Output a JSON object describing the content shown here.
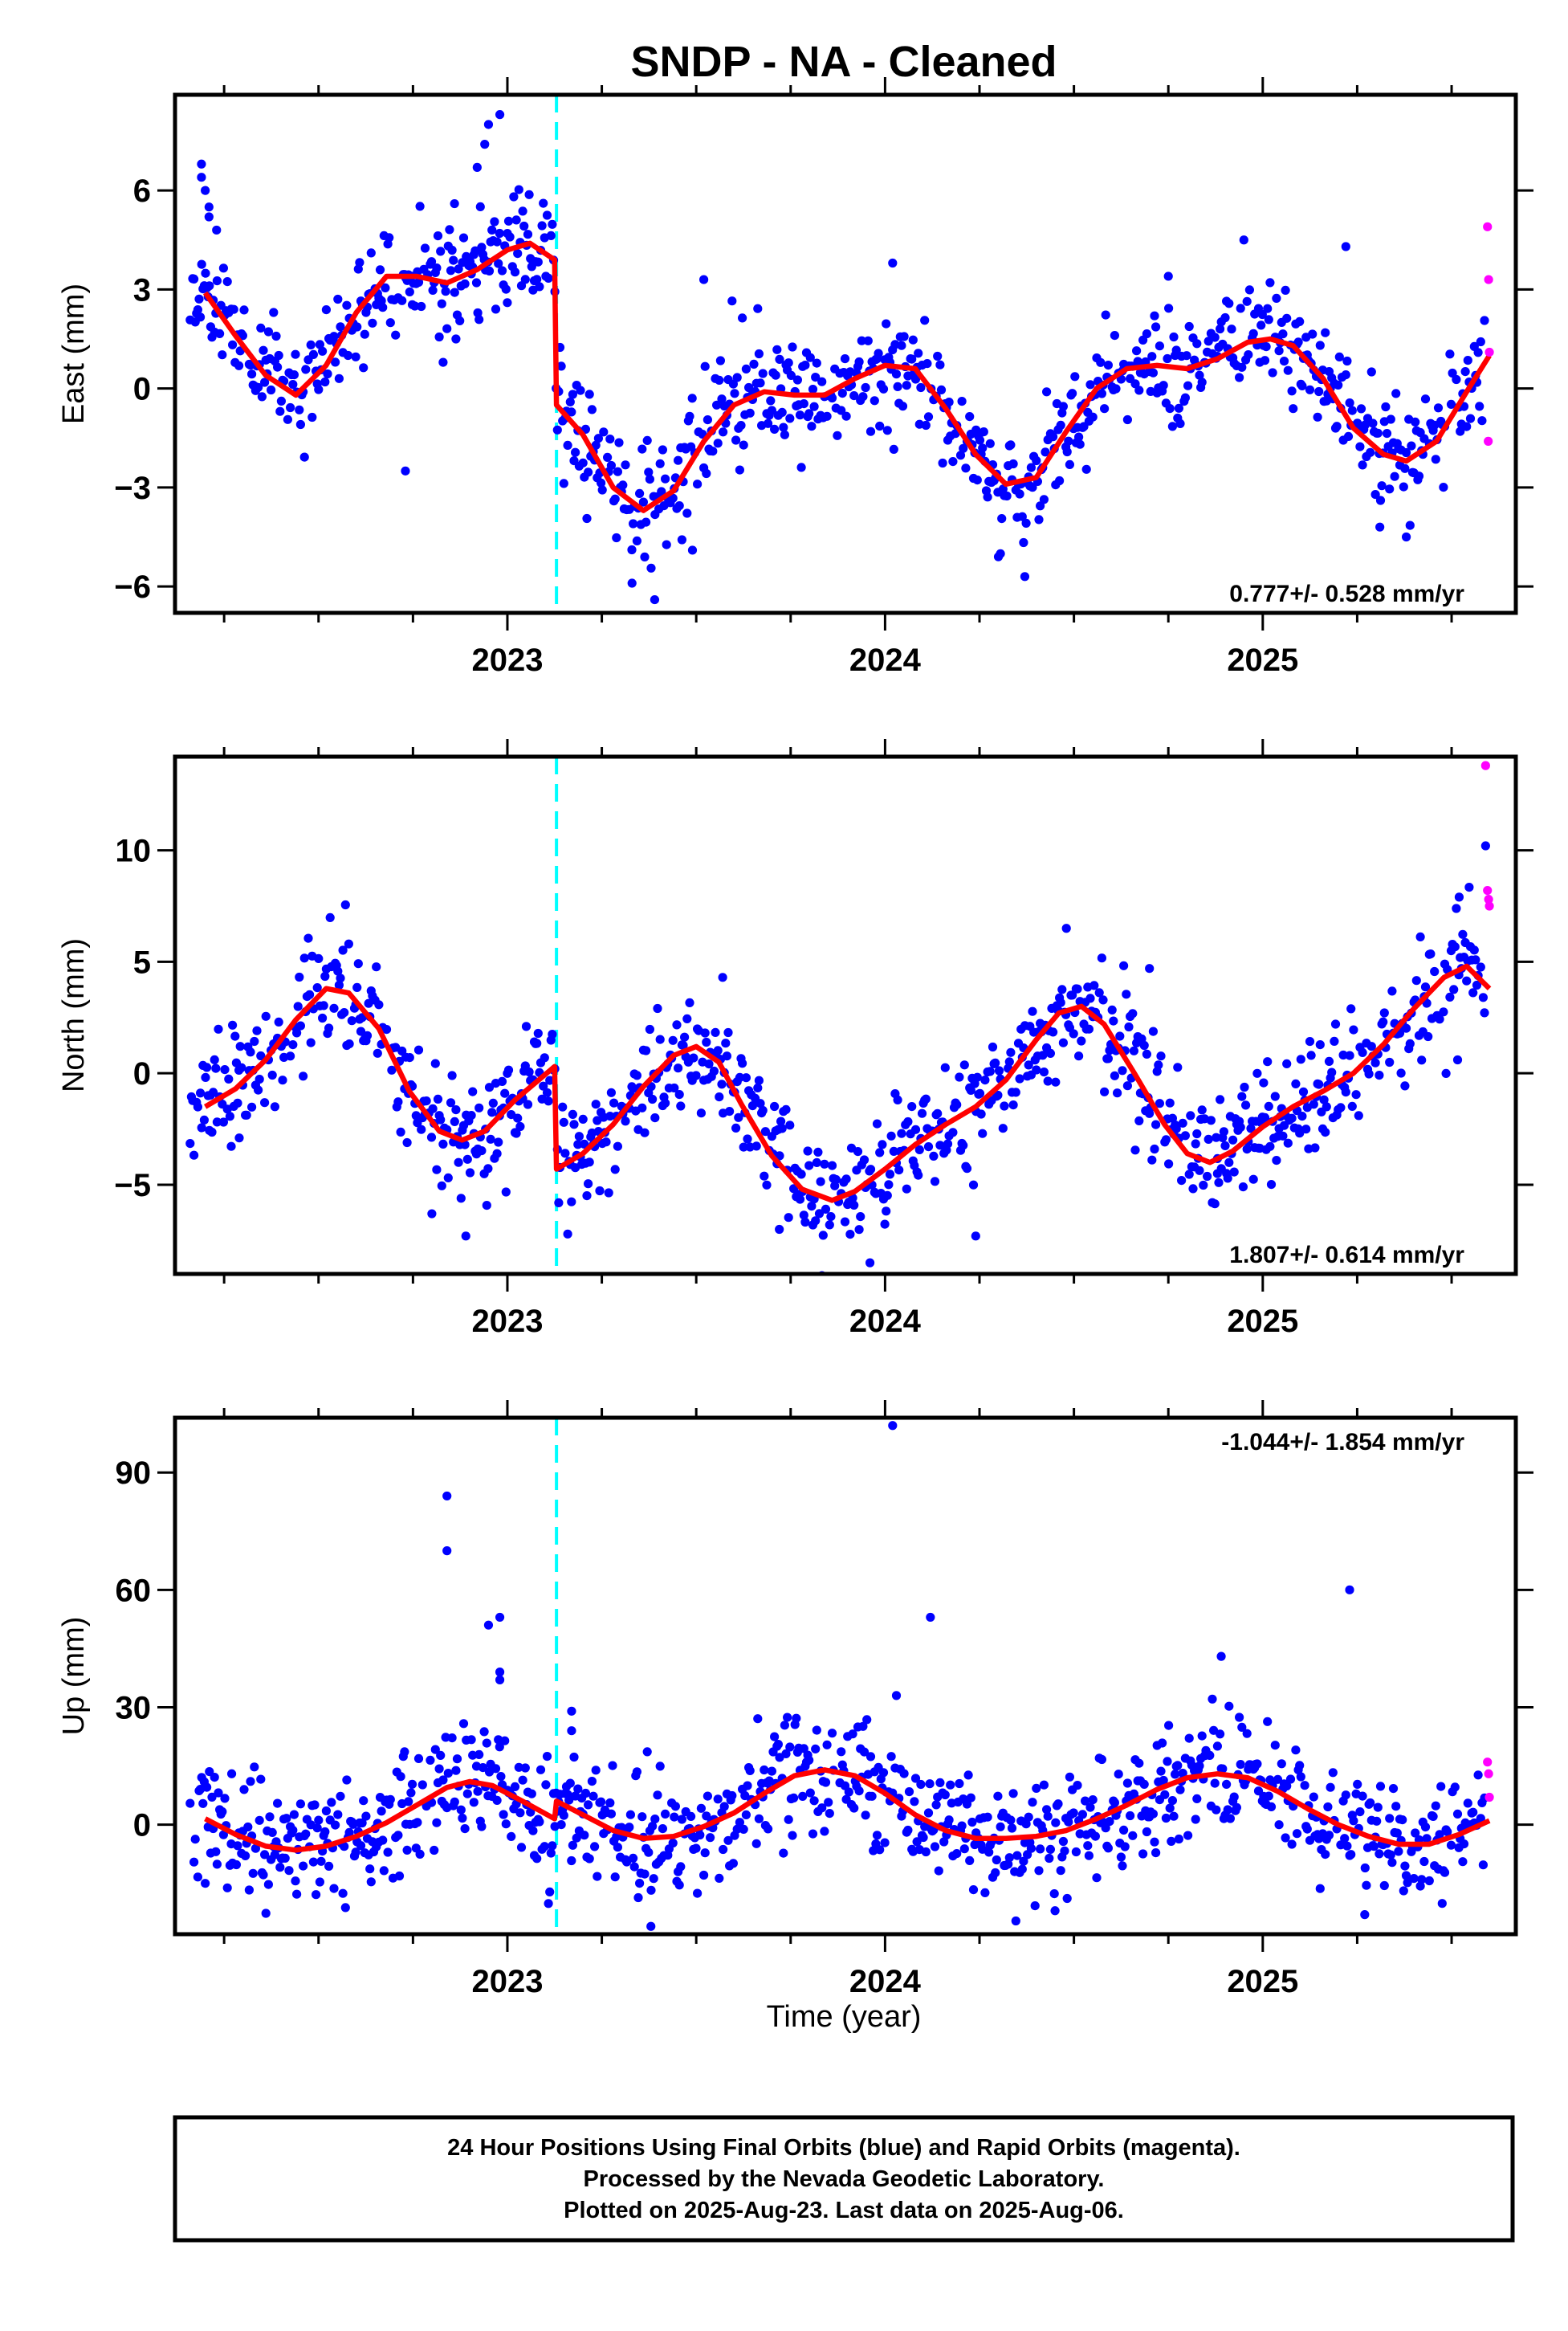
{
  "title": "SNDP  - NA - Cleaned",
  "xlabel": "Time (year)",
  "footer": {
    "line1": "24 Hour Positions Using Final Orbits (blue) and Rapid Orbits (magenta).",
    "line2": "Processed by the Nevada Geodetic Laboratory.",
    "line3": "Plotted on 2025-Aug-23. Last data on 2025-Aug-06."
  },
  "colors": {
    "final": "#0000ff",
    "rapid": "#ff00ff",
    "model": "#ff0000",
    "offset": "#00ffff"
  },
  "chart_data": [
    {
      "type": "scatter",
      "ylabel": "East (mm)",
      "rate": "0.777+/- 0.528 mm/yr",
      "rate_position": "bottom-right",
      "xlim": [
        2022.12,
        2025.67
      ],
      "ylim": [
        -6.8,
        8.9
      ],
      "xticks": [
        2023,
        2024,
        2025
      ],
      "yticks": [
        -6,
        -3,
        0,
        3,
        6
      ],
      "offset_epoch": 2023.13,
      "model": [
        [
          2022.2,
          2.9
        ],
        [
          2022.28,
          1.6
        ],
        [
          2022.36,
          0.4
        ],
        [
          2022.44,
          -0.2
        ],
        [
          2022.52,
          0.7
        ],
        [
          2022.6,
          2.3
        ],
        [
          2022.68,
          3.4
        ],
        [
          2022.76,
          3.4
        ],
        [
          2022.84,
          3.2
        ],
        [
          2022.92,
          3.6
        ],
        [
          2023.0,
          4.2
        ],
        [
          2023.06,
          4.4
        ],
        [
          2023.125,
          3.9
        ],
        [
          2023.13,
          -0.5
        ],
        [
          2023.2,
          -1.4
        ],
        [
          2023.28,
          -3.0
        ],
        [
          2023.36,
          -3.7
        ],
        [
          2023.44,
          -3.1
        ],
        [
          2023.52,
          -1.6
        ],
        [
          2023.6,
          -0.5
        ],
        [
          2023.68,
          -0.1
        ],
        [
          2023.76,
          -0.2
        ],
        [
          2023.84,
          -0.2
        ],
        [
          2023.92,
          0.3
        ],
        [
          2024.0,
          0.7
        ],
        [
          2024.08,
          0.6
        ],
        [
          2024.16,
          -0.6
        ],
        [
          2024.24,
          -2.0
        ],
        [
          2024.32,
          -2.9
        ],
        [
          2024.4,
          -2.7
        ],
        [
          2024.48,
          -1.3
        ],
        [
          2024.56,
          0.0
        ],
        [
          2024.64,
          0.6
        ],
        [
          2024.72,
          0.7
        ],
        [
          2024.8,
          0.6
        ],
        [
          2024.88,
          0.9
        ],
        [
          2024.96,
          1.4
        ],
        [
          2025.02,
          1.5
        ],
        [
          2025.08,
          1.3
        ],
        [
          2025.16,
          0.3
        ],
        [
          2025.24,
          -1.2
        ],
        [
          2025.32,
          -2.0
        ],
        [
          2025.38,
          -2.2
        ],
        [
          2025.46,
          -1.6
        ],
        [
          2025.54,
          -0.1
        ],
        [
          2025.6,
          1.0
        ]
      ],
      "final_seed": 11,
      "final_outliers": [
        [
          2022.19,
          6.8
        ],
        [
          2022.19,
          6.4
        ],
        [
          2022.2,
          6.0
        ],
        [
          2022.21,
          5.5
        ],
        [
          2022.21,
          5.2
        ],
        [
          2022.23,
          4.8
        ],
        [
          2022.98,
          8.3
        ],
        [
          2022.95,
          8.0
        ],
        [
          2022.94,
          7.4
        ],
        [
          2022.92,
          6.7
        ],
        [
          2022.73,
          -2.5
        ],
        [
          2022.86,
          5.6
        ],
        [
          2023.0,
          4.7
        ],
        [
          2023.39,
          -6.4
        ],
        [
          2023.33,
          -5.9
        ],
        [
          2023.49,
          -4.9
        ],
        [
          2023.52,
          3.3
        ],
        [
          2024.02,
          3.8
        ],
        [
          2024.3,
          -5.1
        ],
        [
          2024.37,
          -5.7
        ],
        [
          2024.75,
          3.4
        ],
        [
          2024.95,
          4.5
        ],
        [
          2025.22,
          4.3
        ],
        [
          2025.38,
          -4.5
        ],
        [
          2025.31,
          -4.2
        ]
      ],
      "rapid": [
        [
          2025.595,
          4.9
        ],
        [
          2025.598,
          3.3
        ],
        [
          2025.6,
          1.1
        ],
        [
          2025.597,
          -1.6
        ]
      ]
    },
    {
      "type": "scatter",
      "ylabel": "North (mm)",
      "rate": "1.807+/- 0.614 mm/yr",
      "rate_position": "bottom-right",
      "xlim": [
        2022.12,
        2025.67
      ],
      "ylim": [
        -9.0,
        14.2
      ],
      "xticks": [
        2023,
        2024,
        2025
      ],
      "yticks": [
        -5,
        0,
        5,
        10
      ],
      "offset_epoch": 2023.13,
      "model": [
        [
          2022.2,
          -1.5
        ],
        [
          2022.28,
          -0.7
        ],
        [
          2022.36,
          0.6
        ],
        [
          2022.44,
          2.4
        ],
        [
          2022.52,
          3.8
        ],
        [
          2022.58,
          3.6
        ],
        [
          2022.66,
          2.0
        ],
        [
          2022.74,
          -0.8
        ],
        [
          2022.82,
          -2.6
        ],
        [
          2022.88,
          -3.0
        ],
        [
          2022.94,
          -2.6
        ],
        [
          2023.02,
          -1.2
        ],
        [
          2023.125,
          0.3
        ],
        [
          2023.13,
          -4.3
        ],
        [
          2023.2,
          -3.6
        ],
        [
          2023.28,
          -2.3
        ],
        [
          2023.36,
          -0.6
        ],
        [
          2023.44,
          0.8
        ],
        [
          2023.5,
          1.2
        ],
        [
          2023.56,
          0.5
        ],
        [
          2023.62,
          -1.4
        ],
        [
          2023.7,
          -3.7
        ],
        [
          2023.78,
          -5.2
        ],
        [
          2023.86,
          -5.7
        ],
        [
          2023.92,
          -5.3
        ],
        [
          2024.0,
          -4.3
        ],
        [
          2024.08,
          -3.2
        ],
        [
          2024.16,
          -2.3
        ],
        [
          2024.24,
          -1.5
        ],
        [
          2024.32,
          -0.3
        ],
        [
          2024.4,
          1.5
        ],
        [
          2024.46,
          2.7
        ],
        [
          2024.52,
          3.0
        ],
        [
          2024.58,
          2.2
        ],
        [
          2024.66,
          0.0
        ],
        [
          2024.74,
          -2.3
        ],
        [
          2024.8,
          -3.6
        ],
        [
          2024.86,
          -4.0
        ],
        [
          2024.92,
          -3.5
        ],
        [
          2025.0,
          -2.4
        ],
        [
          2025.08,
          -1.5
        ],
        [
          2025.16,
          -0.8
        ],
        [
          2025.24,
          0.0
        ],
        [
          2025.32,
          1.3
        ],
        [
          2025.4,
          2.9
        ],
        [
          2025.48,
          4.3
        ],
        [
          2025.54,
          4.8
        ],
        [
          2025.6,
          3.8
        ]
      ],
      "final_seed": 23,
      "final_outliers": [
        [
          2022.29,
          -2.9
        ],
        [
          2022.58,
          5.8
        ],
        [
          2022.89,
          -7.3
        ],
        [
          2022.8,
          -6.3
        ],
        [
          2023.05,
          2.1
        ],
        [
          2023.57,
          4.3
        ],
        [
          2023.72,
          -7.0
        ],
        [
          2023.96,
          -8.5
        ],
        [
          2024.24,
          -7.3
        ],
        [
          2024.48,
          6.5
        ],
        [
          2024.7,
          4.7
        ],
        [
          2024.88,
          -4.5
        ],
        [
          2025.52,
          7.9
        ],
        [
          2025.59,
          10.2
        ]
      ],
      "rapid": [
        [
          2025.59,
          13.8
        ],
        [
          2025.595,
          8.2
        ],
        [
          2025.598,
          7.8
        ],
        [
          2025.6,
          7.5
        ]
      ]
    },
    {
      "type": "scatter",
      "ylabel": "Up (mm)",
      "rate": "-1.044+/- 1.854 mm/yr",
      "rate_position": "top-right",
      "xlim": [
        2022.12,
        2025.67
      ],
      "ylim": [
        -28.0,
        104.0
      ],
      "xticks": [
        2023,
        2024,
        2025
      ],
      "yticks": [
        0,
        30,
        60,
        90
      ],
      "offset_epoch": 2023.13,
      "model": [
        [
          2022.2,
          1.5
        ],
        [
          2022.28,
          -2.5
        ],
        [
          2022.36,
          -5.5
        ],
        [
          2022.44,
          -6.5
        ],
        [
          2022.52,
          -5.5
        ],
        [
          2022.6,
          -3.0
        ],
        [
          2022.68,
          0.5
        ],
        [
          2022.76,
          5.0
        ],
        [
          2022.84,
          9.5
        ],
        [
          2022.9,
          11.0
        ],
        [
          2022.96,
          10.0
        ],
        [
          2023.04,
          6.0
        ],
        [
          2023.125,
          1.5
        ],
        [
          2023.13,
          6.0
        ],
        [
          2023.2,
          2.5
        ],
        [
          2023.28,
          -1.5
        ],
        [
          2023.36,
          -3.5
        ],
        [
          2023.44,
          -3.0
        ],
        [
          2023.52,
          -0.5
        ],
        [
          2023.6,
          3.0
        ],
        [
          2023.68,
          8.0
        ],
        [
          2023.76,
          12.5
        ],
        [
          2023.84,
          14.0
        ],
        [
          2023.92,
          12.5
        ],
        [
          2024.0,
          8.0
        ],
        [
          2024.08,
          2.5
        ],
        [
          2024.16,
          -1.5
        ],
        [
          2024.24,
          -3.5
        ],
        [
          2024.32,
          -3.5
        ],
        [
          2024.4,
          -3.0
        ],
        [
          2024.48,
          -1.5
        ],
        [
          2024.56,
          1.5
        ],
        [
          2024.64,
          5.0
        ],
        [
          2024.72,
          9.0
        ],
        [
          2024.8,
          12.0
        ],
        [
          2024.88,
          13.0
        ],
        [
          2024.96,
          12.0
        ],
        [
          2025.04,
          8.5
        ],
        [
          2025.12,
          4.0
        ],
        [
          2025.2,
          0.0
        ],
        [
          2025.28,
          -3.0
        ],
        [
          2025.36,
          -5.0
        ],
        [
          2025.44,
          -5.0
        ],
        [
          2025.52,
          -2.5
        ],
        [
          2025.6,
          1.0
        ]
      ],
      "final_seed": 37,
      "final_outliers": [
        [
          2022.2,
          -15.0
        ],
        [
          2022.27,
          13.0
        ],
        [
          2022.84,
          84.0
        ],
        [
          2022.84,
          70.0
        ],
        [
          2022.95,
          51.0
        ],
        [
          2022.98,
          53.0
        ],
        [
          2022.98,
          39.0
        ],
        [
          2022.98,
          37.0
        ],
        [
          2023.17,
          29.0
        ],
        [
          2023.17,
          24.0
        ],
        [
          2023.38,
          -26.0
        ],
        [
          2024.02,
          102.0
        ],
        [
          2024.03,
          33.0
        ],
        [
          2024.12,
          53.0
        ],
        [
          2024.45,
          -22.0
        ],
        [
          2024.89,
          43.0
        ],
        [
          2025.23,
          60.0
        ],
        [
          2025.27,
          -23.0
        ]
      ],
      "rapid": [
        [
          2025.595,
          16.0
        ],
        [
          2025.598,
          13.0
        ],
        [
          2025.6,
          7.0
        ]
      ]
    }
  ]
}
